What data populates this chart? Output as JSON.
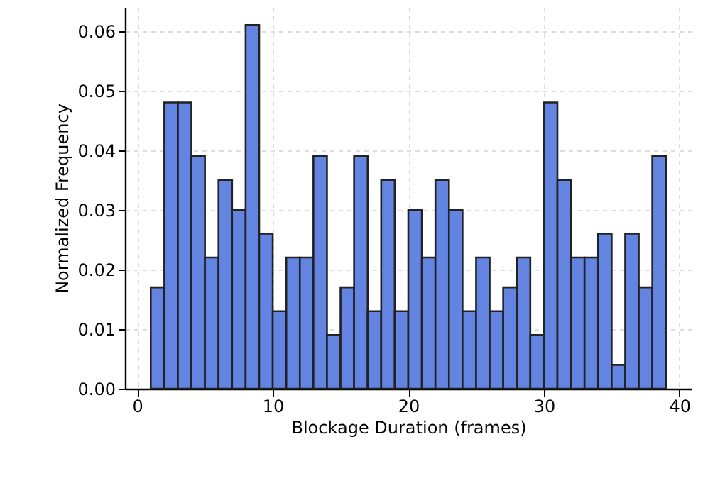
{
  "chart_data": {
    "type": "histogram",
    "xlabel": "Blockage Duration (frames)",
    "ylabel": "Normalized Frequency",
    "bins": [
      1,
      2,
      3,
      4,
      5,
      6,
      7,
      8,
      9,
      10,
      11,
      12,
      13,
      14,
      15,
      16,
      17,
      18,
      19,
      20,
      21,
      22,
      23,
      24,
      25,
      26,
      27,
      28,
      29,
      30,
      31,
      32,
      33,
      34,
      35,
      36,
      37,
      38,
      39
    ],
    "values": [
      0.017,
      0.048,
      0.048,
      0.039,
      0.022,
      0.035,
      0.03,
      0.061,
      0.026,
      0.013,
      0.022,
      0.022,
      0.039,
      0.009,
      0.017,
      0.039,
      0.013,
      0.035,
      0.013,
      0.03,
      0.022,
      0.035,
      0.03,
      0.013,
      0.022,
      0.013,
      0.017,
      0.022,
      0.009,
      0.048,
      0.035,
      0.022,
      0.022,
      0.026,
      0.004,
      0.026,
      0.017,
      0.039
    ],
    "color": "#6384e0",
    "xlim": [
      -0.9,
      40.9
    ],
    "xticks": [
      0,
      10,
      20,
      30,
      40
    ],
    "ylim": [
      0,
      0.064
    ],
    "yticks": [
      {
        "value": 0,
        "label": "0.00"
      },
      {
        "value": 0.01,
        "label": "0.01"
      },
      {
        "value": 0.02,
        "label": "0.02"
      },
      {
        "value": 0.03,
        "label": "0.03"
      },
      {
        "value": 0.04,
        "label": "0.04"
      },
      {
        "value": 0.05,
        "label": "0.05"
      },
      {
        "value": 0.06,
        "label": "0.06"
      }
    ],
    "grid": true
  }
}
